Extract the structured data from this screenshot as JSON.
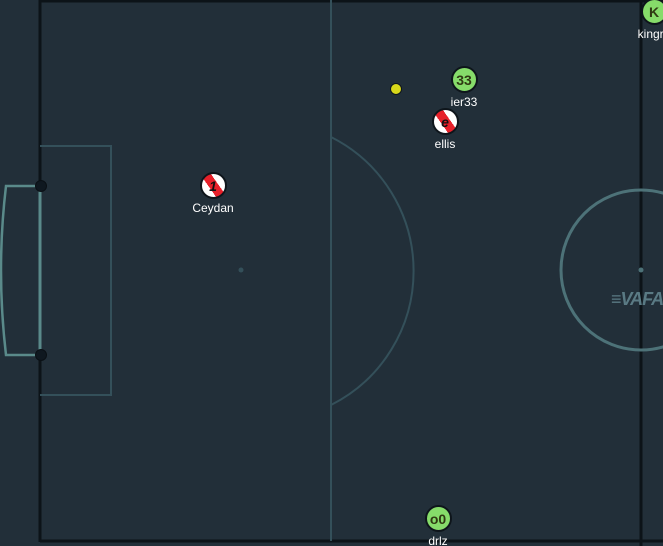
{
  "colors": {
    "pitch": "#222f39",
    "lines": "#3d5b63",
    "team_green": "#86dc6a",
    "team_red": "#e6202a",
    "team_red_base": "#ffffff",
    "ball": "#d8d81a",
    "label": "#ffffff"
  },
  "players": [
    {
      "id": "kingra",
      "number": "K",
      "name": "kingra",
      "team": "green"
    },
    {
      "id": "ier33",
      "number": "33",
      "name": "ier33",
      "team": "green"
    },
    {
      "id": "ellis",
      "number": "e",
      "name": "ellis",
      "team": "red"
    },
    {
      "id": "ceydan",
      "number": "1",
      "name": "Ceydan",
      "team": "red"
    },
    {
      "id": "drlz",
      "number": "o0",
      "name": "drlz",
      "team": "green"
    }
  ],
  "logo_text": "≡VAFA"
}
